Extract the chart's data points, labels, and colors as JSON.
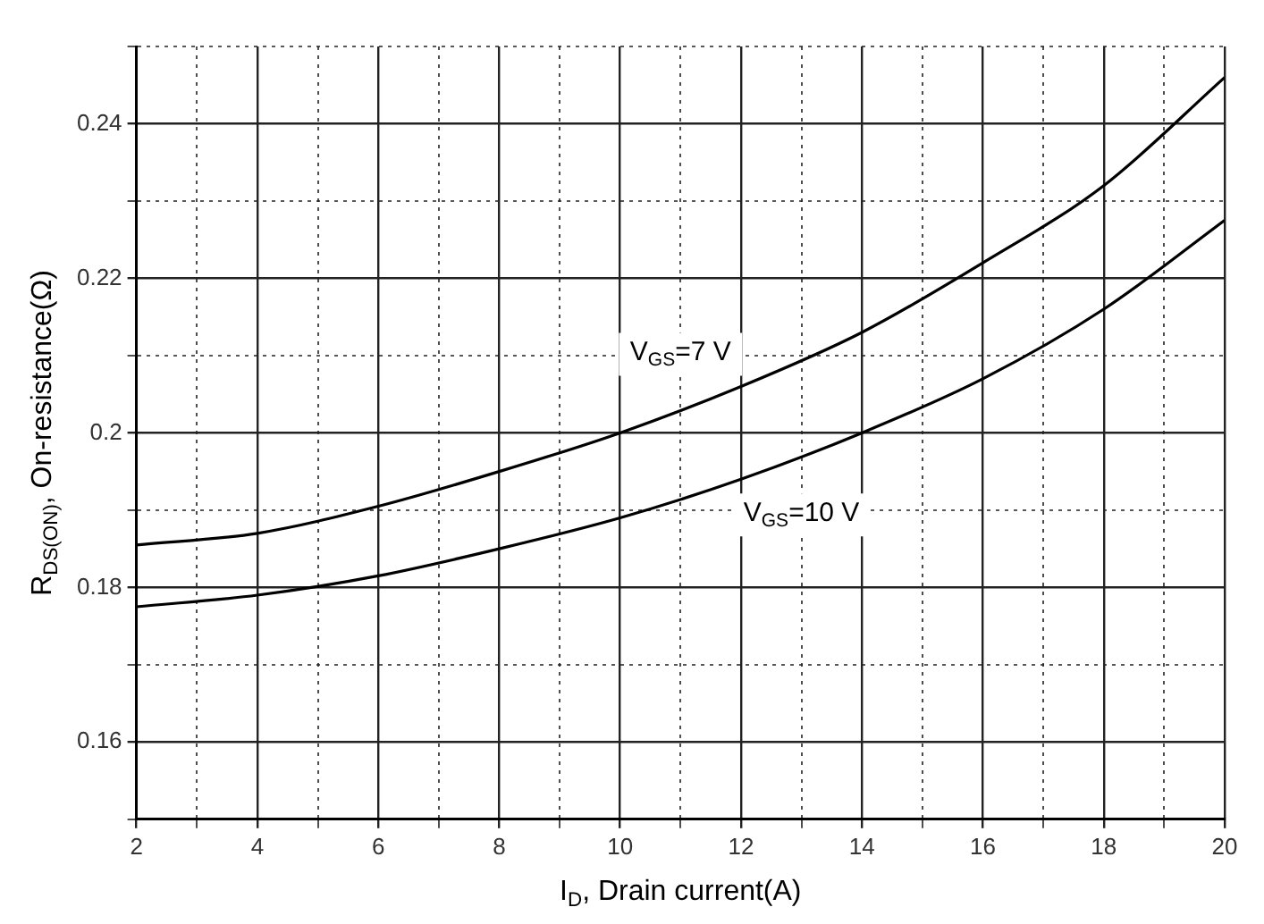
{
  "chart_data": {
    "type": "line",
    "xlabel": "I$_{D}$, Drain current(A)",
    "ylabel": "R$_{DS(ON)}$, On-resistance(Ω)",
    "x": [
      2,
      4,
      6,
      8,
      10,
      12,
      14,
      16,
      18,
      20
    ],
    "series": [
      {
        "name": "V$_{GS}$=7 V",
        "color": "#000000",
        "values": [
          0.1855,
          0.187,
          0.1905,
          0.195,
          0.2,
          0.206,
          0.213,
          0.222,
          0.232,
          0.246
        ]
      },
      {
        "name": "V$_{GS}$=10 V",
        "color": "#000000",
        "values": [
          0.1775,
          0.179,
          0.1815,
          0.185,
          0.189,
          0.194,
          0.2,
          0.207,
          0.216,
          0.2275
        ]
      }
    ],
    "xlim": [
      2,
      20
    ],
    "xticks": [
      2,
      {
        "value": 3,
        "label": null
      },
      4,
      {
        "value": 5,
        "label": null
      },
      6,
      {
        "value": 7,
        "label": null
      },
      8,
      {
        "value": 9,
        "label": null
      },
      10,
      {
        "value": 11,
        "label": null
      },
      12,
      {
        "value": 13,
        "label": null
      },
      14,
      {
        "value": 15,
        "label": null
      },
      16,
      {
        "value": 17,
        "label": null
      },
      18,
      {
        "value": 19,
        "label": null
      },
      20
    ],
    "ylim": [
      0.15,
      0.25
    ],
    "yticks": [
      {
        "value": 0.15,
        "label": null
      },
      0.16,
      {
        "value": 0.17,
        "label": null
      },
      0.18,
      {
        "value": 0.19,
        "label": null
      },
      0.2,
      {
        "value": 0.21,
        "label": null
      },
      0.22,
      {
        "value": 0.23,
        "label": null
      },
      0.24,
      {
        "value": 0.25,
        "label": null
      }
    ],
    "grid": true,
    "marker": "none",
    "line_style": "solid"
  }
}
